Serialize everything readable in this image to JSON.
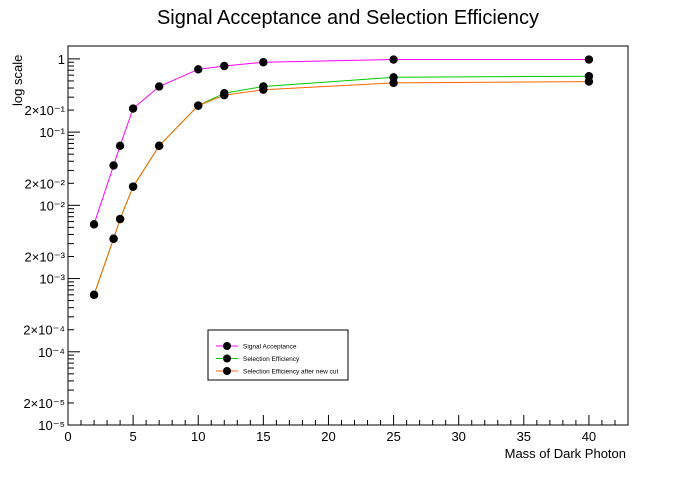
{
  "chart_data": {
    "type": "line",
    "title": "Signal Acceptance and Selection Efficiency",
    "xlabel": "Mass of Dark Photon",
    "ylabel": "log scale",
    "xlim": [
      0,
      43
    ],
    "ylim": [
      1e-05,
      1.5
    ],
    "yscale": "log",
    "grid": false,
    "legend_position": "bottom-center",
    "x_major_ticks": [
      0,
      5,
      10,
      15,
      20,
      25,
      30,
      35,
      40
    ],
    "y_tick_labels": [
      {
        "value": 1,
        "label": "1"
      },
      {
        "value": 0.2,
        "label": "2×10⁻¹"
      },
      {
        "value": 0.1,
        "label": "10⁻¹"
      },
      {
        "value": 0.02,
        "label": "2×10⁻²"
      },
      {
        "value": 0.01,
        "label": "10⁻²"
      },
      {
        "value": 0.002,
        "label": "2×10⁻³"
      },
      {
        "value": 0.001,
        "label": "10⁻³"
      },
      {
        "value": 0.0002,
        "label": "2×10⁻⁴"
      },
      {
        "value": 0.0001,
        "label": "10⁻⁴"
      },
      {
        "value": 2e-05,
        "label": "2×10⁻⁵"
      },
      {
        "value": 1e-05,
        "label": "10⁻⁵"
      }
    ],
    "series": [
      {
        "name": "Signal Acceptance",
        "color": "#ff00ff",
        "x": [
          2,
          3.5,
          4,
          5,
          7,
          10,
          12,
          15,
          25,
          40
        ],
        "y": [
          0.0055,
          0.035,
          0.065,
          0.21,
          0.42,
          0.72,
          0.8,
          0.9,
          0.98,
          0.98
        ]
      },
      {
        "name": "Selection Efficiency",
        "color": "#00cc00",
        "x": [
          2,
          3.5,
          4,
          5,
          7,
          10,
          12,
          15,
          25,
          40
        ],
        "y": [
          0.0006,
          0.0035,
          0.0065,
          0.018,
          0.065,
          0.23,
          0.34,
          0.42,
          0.56,
          0.58
        ]
      },
      {
        "name": "Selection Efficiency after new cut",
        "color": "#ff6600",
        "x": [
          2,
          3.5,
          4,
          5,
          7,
          10,
          12,
          15,
          25,
          40
        ],
        "y": [
          0.0006,
          0.0035,
          0.0065,
          0.018,
          0.065,
          0.23,
          0.32,
          0.38,
          0.47,
          0.49
        ]
      }
    ]
  }
}
